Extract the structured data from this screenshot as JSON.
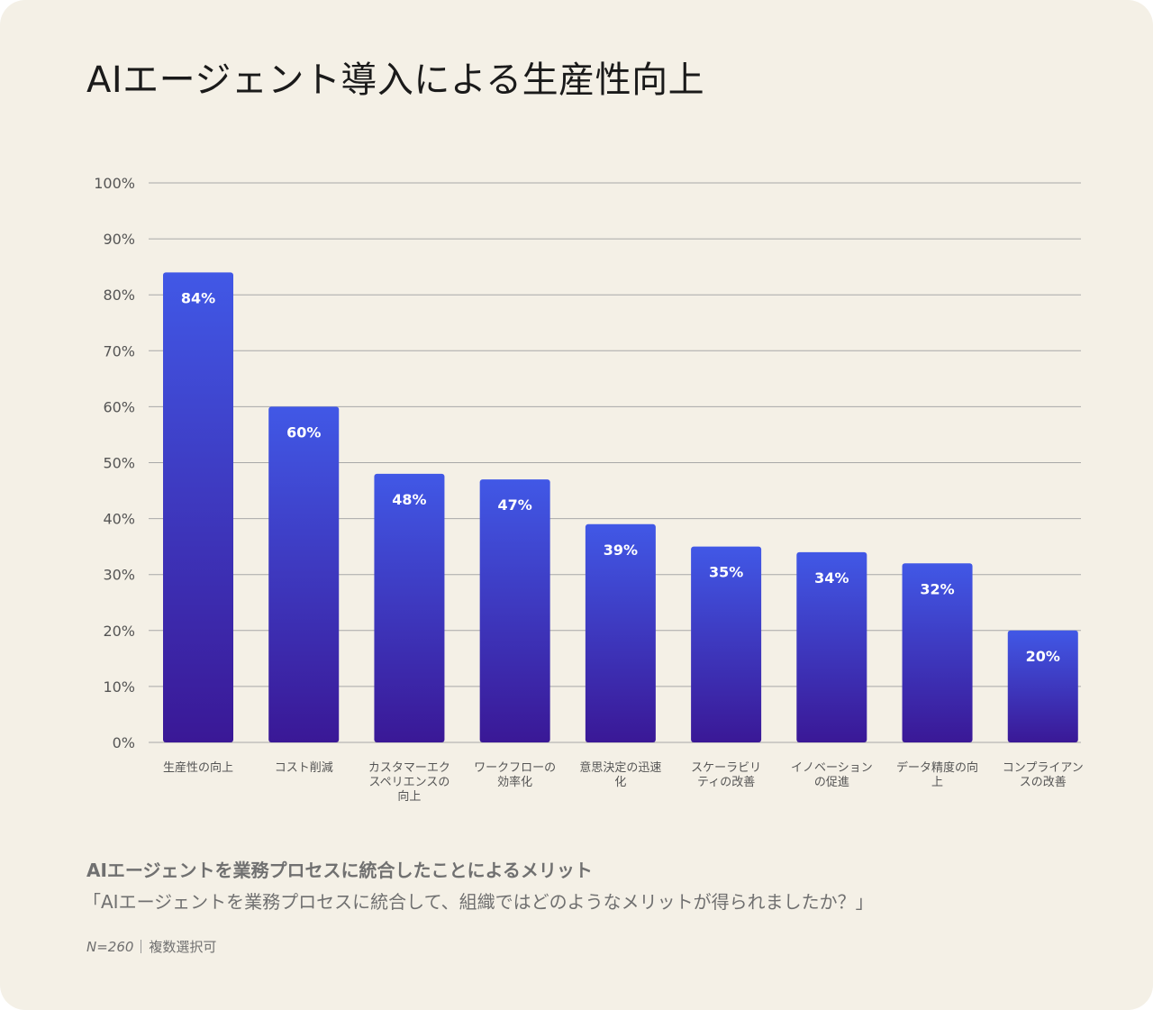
{
  "title": "AIエージェント導入による生産性向上",
  "caption": {
    "title": "AIエージェントを業務プロセスに統合したことによるメリット",
    "question": "「AIエージェントを業務プロセスに統合して、組織ではどのようなメリットが得られましたか？」"
  },
  "footnote": {
    "sample": "N=260",
    "note": "複数選択可"
  },
  "colors": {
    "background": "#f4f0e6",
    "bar_top": "#4158e6",
    "bar_bottom": "#3a1896",
    "grid": "#a8a8a8"
  },
  "chart_data": {
    "type": "bar",
    "categories": [
      "生産性の向上",
      "コスト削減",
      "カスタマーエクスペリエンスの向上",
      "ワークフローの効率化",
      "意思決定の迅速化",
      "スケーラビリティの改善",
      "イノベーションの促進",
      "データ精度の向上",
      "コンプライアンスの改善"
    ],
    "category_lines": [
      [
        "生産性の向上"
      ],
      [
        "コスト削減"
      ],
      [
        "カスタマーエク",
        "スペリエンスの",
        "向上"
      ],
      [
        "ワークフローの",
        "効率化"
      ],
      [
        "意思決定の迅速",
        "化"
      ],
      [
        "スケーラビリ",
        "ティの改善"
      ],
      [
        "イノベーション",
        "の促進"
      ],
      [
        "データ精度の向",
        "上"
      ],
      [
        "コンプライアン",
        "スの改善"
      ]
    ],
    "values": [
      84,
      60,
      48,
      47,
      39,
      35,
      34,
      32,
      20
    ],
    "value_labels": [
      "84%",
      "60%",
      "48%",
      "47%",
      "39%",
      "35%",
      "34%",
      "32%",
      "20%"
    ],
    "ylim": [
      0,
      100
    ],
    "yticks": [
      "0%",
      "10%",
      "20%",
      "30%",
      "40%",
      "50%",
      "60%",
      "70%",
      "80%",
      "90%",
      "100%"
    ],
    "grid": true
  }
}
